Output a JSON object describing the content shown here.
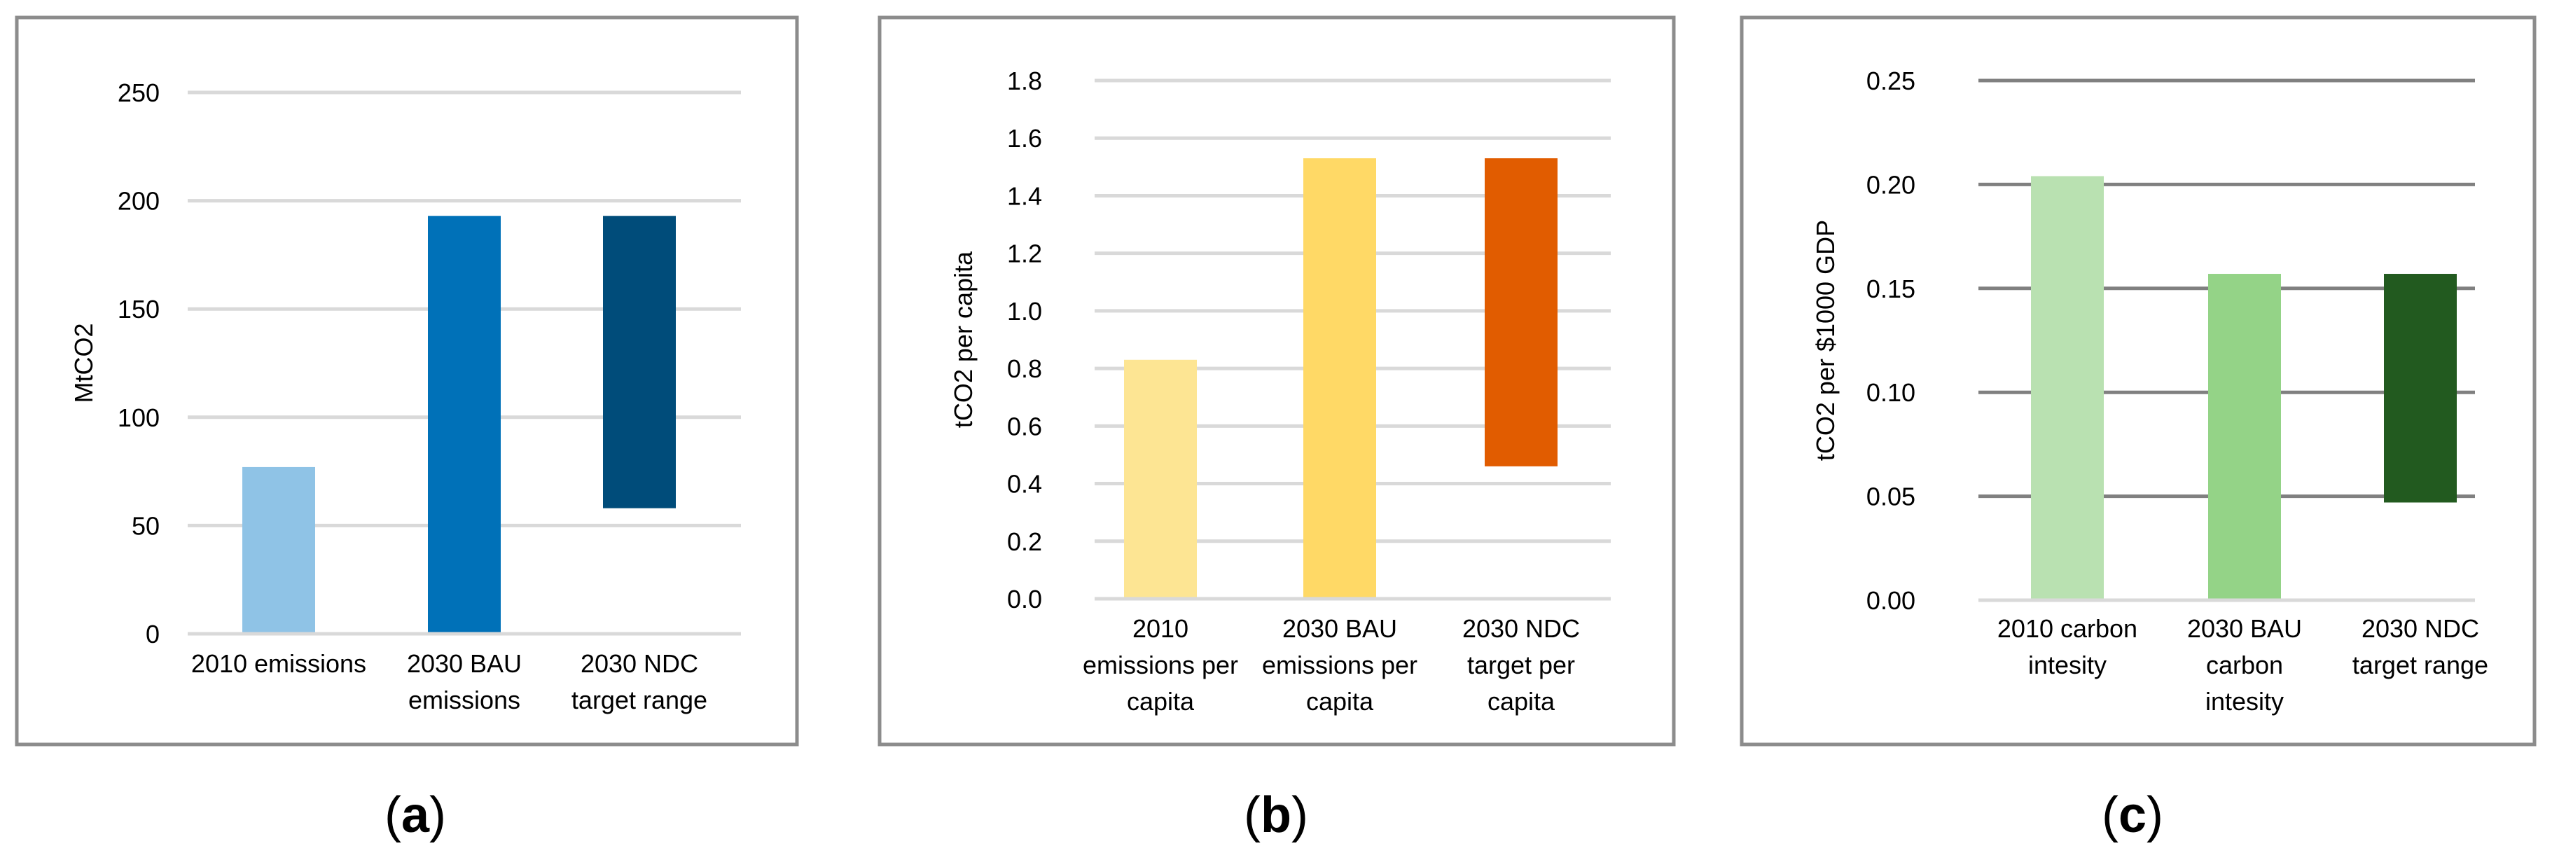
{
  "chart_data": [
    {
      "panel_label": "a",
      "type": "bar",
      "ylabel": "MtCO2",
      "ylim": [
        0,
        250
      ],
      "yticks": [
        "0",
        "50",
        "100",
        "150",
        "200",
        "250"
      ],
      "categories": [
        [
          "2010 emissions"
        ],
        [
          "2030 BAU",
          "emissions"
        ],
        [
          "2030 NDC",
          "target range"
        ]
      ],
      "bars": [
        {
          "low": 0,
          "high": 77,
          "color": "#8FC3E6"
        },
        {
          "low": 0,
          "high": 193,
          "color": "#0071B8"
        },
        {
          "low": 58,
          "high": 193,
          "color": "#004C7A"
        }
      ],
      "grid_color": "#D9D9D9"
    },
    {
      "panel_label": "b",
      "type": "bar",
      "ylabel": "tCO2 per capita",
      "ylim": [
        0,
        1.8
      ],
      "yticks": [
        "0.0",
        "0.2",
        "0.4",
        "0.6",
        "0.8",
        "1.0",
        "1.2",
        "1.4",
        "1.6",
        "1.8"
      ],
      "categories": [
        [
          "2010",
          "emissions per",
          "capita"
        ],
        [
          "2030 BAU",
          "emissions per",
          "capita"
        ],
        [
          "2030 NDC",
          "target per",
          "capita"
        ]
      ],
      "bars": [
        {
          "low": 0,
          "high": 0.83,
          "color": "#FDE593"
        },
        {
          "low": 0,
          "high": 1.53,
          "color": "#FFD966"
        },
        {
          "low": 0.46,
          "high": 1.53,
          "color": "#E15C00"
        }
      ],
      "grid_color": "#D9D9D9"
    },
    {
      "panel_label": "c",
      "type": "bar",
      "ylabel": "tCO2 per $1000 GDP",
      "ylim": [
        0,
        0.25
      ],
      "yticks": [
        "0.00",
        "0.05",
        "0.10",
        "0.15",
        "0.20",
        "0.25"
      ],
      "categories": [
        [
          "2010 carbon",
          "intesity"
        ],
        [
          "2030 BAU",
          "carbon",
          "intesity"
        ],
        [
          "2030 NDC",
          "target range"
        ]
      ],
      "bars": [
        {
          "low": 0,
          "high": 0.204,
          "color": "#B9E1B1"
        },
        {
          "low": 0,
          "high": 0.157,
          "color": "#94D387"
        },
        {
          "low": 0.047,
          "high": 0.157,
          "color": "#225A1F"
        }
      ],
      "grid_color": "#808080"
    }
  ]
}
